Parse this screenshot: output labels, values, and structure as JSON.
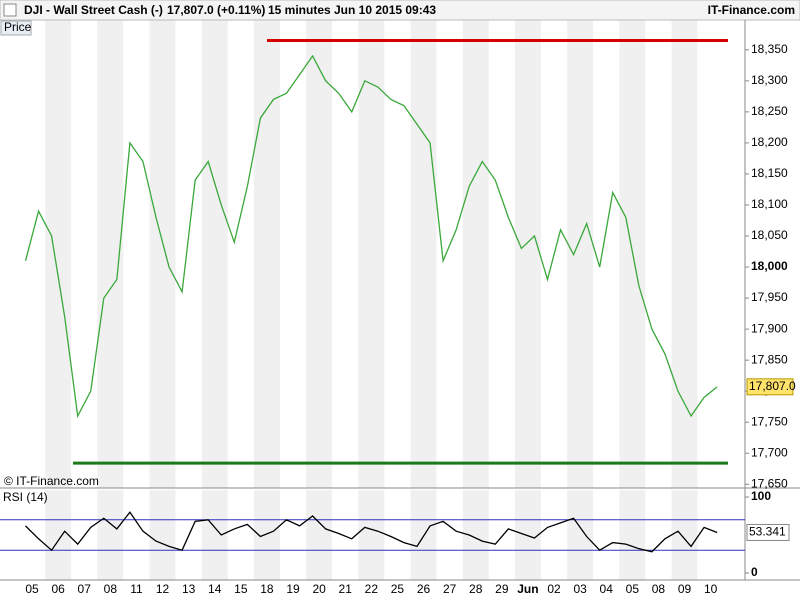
{
  "header": {
    "symbol": "DJI - Wall Street Cash (-)",
    "quote": "17,807.0 (+0.11%)",
    "interval": "15 minutes",
    "timestamp": "Jun 10 2015 09:43",
    "brand": "IT-Finance.com"
  },
  "chart_data": [
    {
      "type": "line",
      "panel_label": "Price",
      "copyright": "© IT-Finance.com",
      "categories": [
        "05",
        null,
        "06",
        null,
        "07",
        null,
        "08",
        null,
        "11",
        null,
        "12",
        null,
        "13",
        null,
        "14",
        null,
        "15",
        null,
        "18",
        null,
        "19",
        null,
        "20",
        null,
        "21",
        null,
        "22",
        null,
        "25",
        null,
        "26",
        null,
        "27",
        null,
        "28",
        null,
        "29",
        null,
        "Jun",
        null,
        "02",
        null,
        "03",
        null,
        "04",
        null,
        "05",
        null,
        "08",
        null,
        "09",
        null,
        "10",
        null
      ],
      "series": [
        {
          "color": "#3aa83a",
          "values": [
            18010,
            18090,
            18050,
            17920,
            17760,
            17800,
            17950,
            17980,
            18200,
            18170,
            18080,
            18000,
            17960,
            18140,
            18170,
            18100,
            18040,
            18130,
            18240,
            18270,
            18280,
            18310,
            18340,
            18300,
            18280,
            18250,
            18300,
            18290,
            18270,
            18260,
            18230,
            18200,
            18010,
            18060,
            18130,
            18170,
            18140,
            18080,
            18030,
            18050,
            17980,
            18060,
            18020,
            18070,
            18000,
            18120,
            18080,
            17970,
            17900,
            17860,
            17800,
            17760,
            17790,
            17807
          ]
        }
      ],
      "ylim": [
        17644,
        18398
      ],
      "yticks": [
        {
          "value": 17650,
          "label": "17,650"
        },
        {
          "value": 17700,
          "label": "17,700"
        },
        {
          "value": 17750,
          "label": "17,750"
        },
        {
          "value": 17800,
          "label": "17,800"
        },
        {
          "value": 17850,
          "label": "17,850"
        },
        {
          "value": 17900,
          "label": "17,900"
        },
        {
          "value": 17950,
          "label": "17,950"
        },
        {
          "value": 18000,
          "label": "18,000"
        },
        {
          "value": 18050,
          "label": "18,050"
        },
        {
          "value": 18100,
          "label": "18,100"
        },
        {
          "value": 18150,
          "label": "18,150"
        },
        {
          "value": 18200,
          "label": "18,200"
        },
        {
          "value": 18250,
          "label": "18,250"
        },
        {
          "value": 18300,
          "label": "18,300"
        },
        {
          "value": 18350,
          "label": "18,350"
        }
      ],
      "levels": [
        {
          "value": 18365,
          "color": "#d40000"
        },
        {
          "value": 17684,
          "color": "#1a7a1a"
        }
      ],
      "last_value": {
        "value": 17807,
        "label": "17,807.0"
      }
    },
    {
      "type": "line",
      "title": "RSI (14)",
      "series": [
        {
          "color": "#000000",
          "values": [
            62,
            45,
            30,
            55,
            38,
            60,
            72,
            58,
            80,
            55,
            42,
            35,
            30,
            68,
            70,
            50,
            58,
            64,
            48,
            55,
            70,
            62,
            75,
            58,
            52,
            45,
            60,
            55,
            48,
            40,
            35,
            62,
            68,
            55,
            50,
            42,
            38,
            58,
            52,
            46,
            60,
            66,
            72,
            48,
            30,
            40,
            38,
            32,
            28,
            45,
            55,
            35,
            60,
            53.341
          ]
        }
      ],
      "ylim": [
        -9.2,
        109.2
      ],
      "yticks": [
        0,
        100
      ],
      "bands": [
        30,
        70
      ],
      "band_color": "#3030c0",
      "last_value": 53.341
    }
  ]
}
